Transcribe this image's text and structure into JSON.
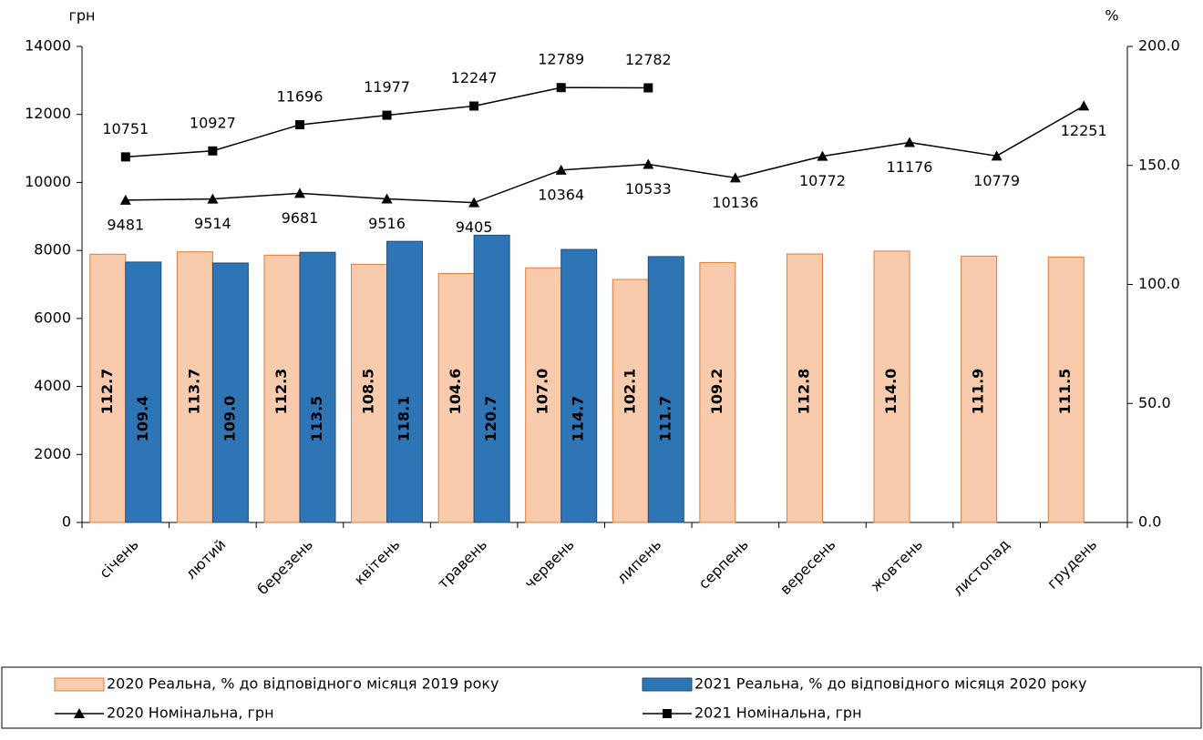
{
  "chart_data": {
    "type": "bar+line",
    "y_label": "грн",
    "y2_label": "%",
    "categories": [
      "січень",
      "лютий",
      "березень",
      "квітень",
      "травень",
      "червень",
      "липень",
      "серпень",
      "вересень",
      "жовтень",
      "листопад",
      "грудень"
    ],
    "series": [
      {
        "name": "2020  Реальна, % до відповідного місяця 2019  року",
        "type": "bar",
        "axis": "y2",
        "color": "#f8cbad",
        "edge_color": "#e07b39",
        "values": [
          112.7,
          113.7,
          112.3,
          108.5,
          104.6,
          107.0,
          102.1,
          109.2,
          112.8,
          114.0,
          111.9,
          111.5
        ],
        "value_labels": [
          "112.7",
          "113.7",
          "112.3",
          "108.5",
          "104.6",
          "107.0",
          "102.1",
          "109.2",
          "112.8",
          "114.0",
          "111.9",
          "111.5"
        ]
      },
      {
        "name": "2021  Реальна, % до відповідного місяця 2020  року",
        "type": "bar",
        "axis": "y2",
        "color": "#2e75b6",
        "edge_color": "#1f4e79",
        "values": [
          109.4,
          109.0,
          113.5,
          118.1,
          120.7,
          114.7,
          111.7,
          null,
          null,
          null,
          null,
          null
        ],
        "value_labels": [
          "109.4",
          "109.0",
          "113.5",
          "118.1",
          "120.7",
          "114.7",
          "111.7",
          null,
          null,
          null,
          null,
          null
        ]
      },
      {
        "name": "2020  Номінальна, грн",
        "type": "line",
        "marker": "triangle",
        "color": "#000000",
        "values": [
          9481,
          9514,
          9681,
          9516,
          9405,
          10364,
          10533,
          10136,
          10772,
          11176,
          10779,
          12251
        ]
      },
      {
        "name": "2021  Номінальна, грн",
        "type": "line",
        "marker": "square",
        "color": "#000000",
        "values": [
          10751,
          10927,
          11696,
          11977,
          12247,
          12789,
          12782,
          null,
          null,
          null,
          null,
          null
        ]
      }
    ],
    "ylim": [
      0,
      14000
    ],
    "yticks": [
      0,
      2000,
      4000,
      6000,
      8000,
      10000,
      12000,
      14000
    ],
    "y2lim": [
      0,
      200
    ],
    "y2ticks": [
      {
        "value": 0,
        "label": "0.0"
      },
      {
        "value": 50,
        "label": "50.0"
      },
      {
        "value": 100,
        "label": "100.0"
      },
      {
        "value": 150,
        "label": "150.0"
      },
      {
        "value": 200,
        "label": "200.0"
      }
    ],
    "legend": "bottom"
  }
}
